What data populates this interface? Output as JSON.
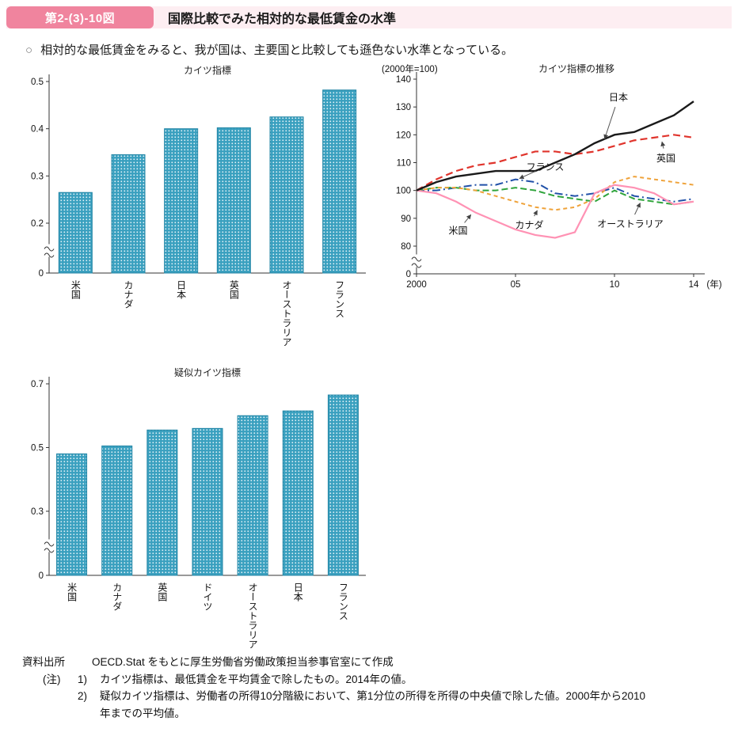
{
  "colors": {
    "badge_bg": "#f0849e",
    "strip_bg": "#fdeef2",
    "bar_fill": "#3aa0bf",
    "bar_stroke": "#2285a5",
    "axis": "#333333"
  },
  "header": {
    "figure_no": "第2-(3)-10図",
    "title": "国際比較でみた相対的な最低賃金の水準"
  },
  "lead": {
    "marker": "○",
    "text": "相対的な最低賃金をみると、我が国は、主要国と比較しても遜色ない水準となっている。"
  },
  "chart_data": [
    {
      "id": "kaitz_bar",
      "type": "bar",
      "title": "カイツ指標",
      "categories": [
        "米国",
        "カナダ",
        "日本",
        "英国",
        "オーストラリア",
        "フランス"
      ],
      "values": [
        0.265,
        0.345,
        0.4,
        0.402,
        0.425,
        0.482
      ],
      "yticks": [
        0,
        0.2,
        0.3,
        0.4,
        0.5
      ],
      "ylim": [
        0,
        0.5
      ],
      "axis_break": true,
      "grid": false
    },
    {
      "id": "kaitz_trend",
      "type": "line",
      "title": "カイツ指標の推移",
      "unit": "(2000年=100)",
      "x_start": 2000,
      "x_end": 2014,
      "xtick_years": [
        2000,
        2005,
        2010,
        2014
      ],
      "xtick_labels": [
        "2000",
        "05",
        "10",
        "14"
      ],
      "x_suffix": "(年)",
      "yticks": [
        0,
        80,
        90,
        100,
        110,
        120,
        130,
        140
      ],
      "ylim": [
        80,
        140
      ],
      "axis_break": true,
      "grid": false,
      "series": [
        {
          "name": "フランス",
          "color": "#2050a8",
          "dash": "10 4 2 4",
          "width": 2,
          "values": [
            100,
            100,
            101,
            102,
            102,
            104,
            103,
            99,
            98,
            99,
            101,
            98,
            97,
            96,
            97
          ]
        },
        {
          "name": "オーストラリア",
          "color": "#2fa43c",
          "dash": "8 4",
          "width": 2,
          "values": [
            100,
            101,
            101,
            100,
            100,
            101,
            100,
            98,
            97,
            96,
            100,
            97,
            96,
            95,
            96
          ]
        },
        {
          "name": "カナダ",
          "color": "#efa33b",
          "dash": "5 4",
          "width": 2,
          "values": [
            100,
            101,
            101,
            100,
            98,
            96,
            94,
            93,
            94,
            97,
            103,
            105,
            104,
            103,
            102
          ]
        },
        {
          "name": "米国",
          "color": "#ff92b4",
          "dash": null,
          "width": 2.2,
          "values": [
            100,
            99,
            96,
            92,
            89,
            86,
            84,
            83,
            85,
            99,
            102,
            101,
            99,
            95,
            96
          ]
        },
        {
          "name": "英国",
          "color": "#e0342c",
          "dash": "9 5",
          "width": 2.2,
          "values": [
            100,
            104,
            107,
            109,
            110,
            112,
            114,
            114,
            113,
            114,
            116,
            118,
            119,
            120,
            119
          ]
        },
        {
          "name": "日本",
          "color": "#1a1a1a",
          "dash": null,
          "width": 2.4,
          "values": [
            100,
            103,
            105,
            106,
            107,
            107,
            107,
            110,
            113,
            117,
            120,
            121,
            124,
            127,
            132
          ]
        }
      ],
      "annotations": [
        {
          "text": "日本",
          "tx": 2010.2,
          "ty": 133.5,
          "ax": 2009.5,
          "ay": 118.5
        },
        {
          "text": "英国",
          "tx": 2012.6,
          "ty": 111.5,
          "ax": 2012.4,
          "ay": 117.5
        },
        {
          "text": "フランス",
          "tx": 2006.5,
          "ty": 108.5,
          "ax": 2005.2,
          "ay": 104.3
        },
        {
          "text": "カナダ",
          "tx": 2005.7,
          "ty": 87.5,
          "ax": 2006.1,
          "ay": 92.8
        },
        {
          "text": "米国",
          "tx": 2002.1,
          "ty": 85.5,
          "ax": 2002.75,
          "ay": 91.3
        },
        {
          "text": "オーストラリア",
          "tx": 2010.8,
          "ty": 88.0,
          "ax": 2011.3,
          "ay": 95.5
        }
      ]
    },
    {
      "id": "pseudo_kaitz_bar",
      "type": "bar",
      "title": "疑似カイツ指標",
      "categories": [
        "米国",
        "カナダ",
        "英国",
        "ドイツ",
        "オーストラリア",
        "日本",
        "フランス"
      ],
      "values": [
        0.48,
        0.505,
        0.555,
        0.56,
        0.6,
        0.615,
        0.665
      ],
      "yticks": [
        0,
        0.3,
        0.5,
        0.7
      ],
      "ylim": [
        0,
        0.7
      ],
      "axis_break": true,
      "grid": false
    }
  ],
  "footer": {
    "source_label": "資料出所",
    "source_text": "OECD.Stat をもとに厚生労働省労働政策担当参事官室にて作成",
    "note_label": "(注)",
    "notes": [
      {
        "no": "1)",
        "text": "カイツ指標は、最低賃金を平均賃金で除したもの。2014年の値。"
      },
      {
        "no": "2)",
        "text": "疑似カイツ指標は、労働者の所得10分階級において、第1分位の所得を所得の中央値で除した値。2000年から2010年までの平均値。"
      }
    ]
  }
}
